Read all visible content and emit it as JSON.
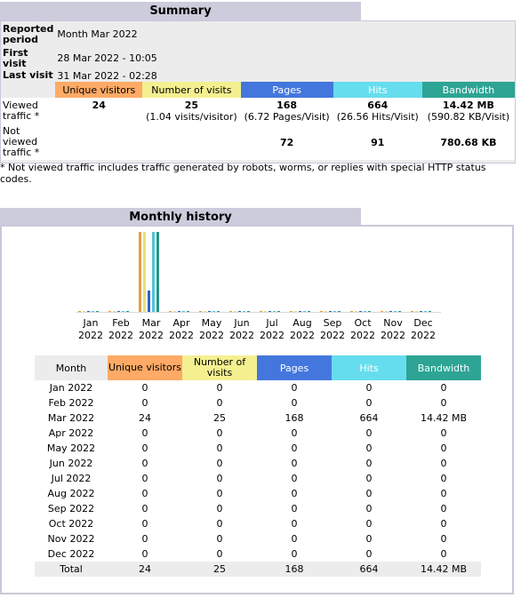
{
  "summary": {
    "title": "Summary",
    "reported_period_label": "Reported period",
    "reported_period_value": "Month Mar 2022",
    "first_visit_label": "First visit",
    "first_visit_value": "28 Mar 2022 - 10:05",
    "last_visit_label": "Last visit",
    "last_visit_value": "31 Mar 2022 - 02:28",
    "headers": [
      "Unique visitors",
      "Number of visits",
      "Pages",
      "Hits",
      "Bandwidth"
    ],
    "viewed_label": "Viewed traffic *",
    "viewed": {
      "unique": "24",
      "visits": "25",
      "visits_sub": "(1.04 visits/visitor)",
      "pages": "168",
      "pages_sub": "(6.72 Pages/Visit)",
      "hits": "664",
      "hits_sub": "(26.56 Hits/Visit)",
      "bandwidth": "14.42 MB",
      "bandwidth_sub": "(590.82 KB/Visit)"
    },
    "not_viewed_label": "Not viewed traffic *",
    "not_viewed": {
      "pages": "72",
      "hits": "91",
      "bandwidth": "780.68 KB"
    },
    "footnote": "* Not viewed traffic includes traffic generated by robots, worms, or replies with special HTTP status codes."
  },
  "monthly": {
    "title": "Monthly history",
    "headers": [
      "Month",
      "Unique visitors",
      "Number of visits",
      "Pages",
      "Hits",
      "Bandwidth"
    ],
    "rows": [
      [
        "Jan 2022",
        "0",
        "0",
        "0",
        "0",
        "0"
      ],
      [
        "Feb 2022",
        "0",
        "0",
        "0",
        "0",
        "0"
      ],
      [
        "Mar 2022",
        "24",
        "25",
        "168",
        "664",
        "14.42 MB"
      ],
      [
        "Apr 2022",
        "0",
        "0",
        "0",
        "0",
        "0"
      ],
      [
        "May 2022",
        "0",
        "0",
        "0",
        "0",
        "0"
      ],
      [
        "Jun 2022",
        "0",
        "0",
        "0",
        "0",
        "0"
      ],
      [
        "Jul 2022",
        "0",
        "0",
        "0",
        "0",
        "0"
      ],
      [
        "Aug 2022",
        "0",
        "0",
        "0",
        "0",
        "0"
      ],
      [
        "Sep 2022",
        "0",
        "0",
        "0",
        "0",
        "0"
      ],
      [
        "Oct 2022",
        "0",
        "0",
        "0",
        "0",
        "0"
      ],
      [
        "Nov 2022",
        "0",
        "0",
        "0",
        "0",
        "0"
      ],
      [
        "Dec 2022",
        "0",
        "0",
        "0",
        "0",
        "0"
      ]
    ],
    "total": [
      "Total",
      "24",
      "25",
      "168",
      "664",
      "14.42 MB"
    ]
  },
  "chart_data": {
    "type": "bar",
    "categories": [
      "Jan 2022",
      "Feb 2022",
      "Mar 2022",
      "Apr 2022",
      "May 2022",
      "Jun 2022",
      "Jul 2022",
      "Aug 2022",
      "Sep 2022",
      "Oct 2022",
      "Nov 2022",
      "Dec 2022"
    ],
    "month_labels": [
      [
        "Jan",
        "2022"
      ],
      [
        "Feb",
        "2022"
      ],
      [
        "Mar",
        "2022"
      ],
      [
        "Apr",
        "2022"
      ],
      [
        "May",
        "2022"
      ],
      [
        "Jun",
        "2022"
      ],
      [
        "Jul",
        "2022"
      ],
      [
        "Aug",
        "2022"
      ],
      [
        "Sep",
        "2022"
      ],
      [
        "Oct",
        "2022"
      ],
      [
        "Nov",
        "2022"
      ],
      [
        "Dec",
        "2022"
      ]
    ],
    "series": [
      {
        "values": [
          0,
          0,
          24,
          0,
          0,
          0,
          0,
          0,
          0,
          0,
          0,
          0
        ]
      },
      {
        "values": [
          0,
          0,
          25,
          0,
          0,
          0,
          0,
          0,
          0,
          0,
          0,
          0
        ]
      },
      {
        "values": [
          0,
          0,
          168,
          0,
          0,
          0,
          0,
          0,
          0,
          0,
          0,
          0
        ]
      },
      {
        "values": [
          0,
          0,
          664,
          0,
          0,
          0,
          0,
          0,
          0,
          0,
          0,
          0
        ]
      },
      {
        "values": [
          0,
          0,
          14.42,
          0,
          0,
          0,
          0,
          0,
          0,
          0,
          0,
          0
        ]
      }
    ],
    "colors": [
      "#e0a040",
      "#e8e080",
      "#3360c8",
      "#4fc6d6",
      "#24958a"
    ]
  }
}
